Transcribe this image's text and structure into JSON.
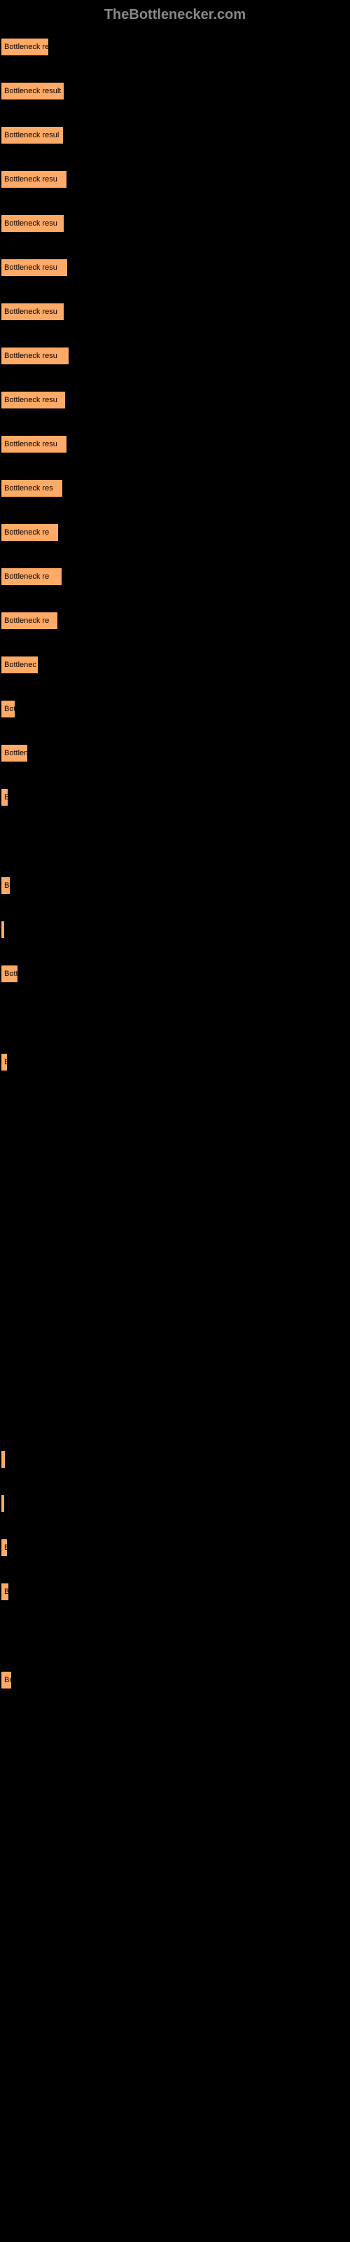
{
  "header": "TheBottlenecker.com",
  "bars": [
    {
      "label": "Bottleneck result",
      "width": 71
    },
    {
      "label": "Bottleneck result",
      "width": 93
    },
    {
      "label": "Bottleneck resul",
      "width": 92
    },
    {
      "label": "Bottleneck resu",
      "width": 97
    },
    {
      "label": "Bottleneck resu",
      "width": 93
    },
    {
      "label": "Bottleneck resu",
      "width": 98
    },
    {
      "label": "Bottleneck resu",
      "width": 93
    },
    {
      "label": "Bottleneck resu",
      "width": 100
    },
    {
      "label": "Bottleneck resu",
      "width": 95
    },
    {
      "label": "Bottleneck resu",
      "width": 97
    },
    {
      "label": "Bottleneck res",
      "width": 91
    },
    {
      "label": "Bottleneck re",
      "width": 85
    },
    {
      "label": "Bottleneck re",
      "width": 90
    },
    {
      "label": "Bottleneck re",
      "width": 84
    },
    {
      "label": "Bottlenec",
      "width": 56
    },
    {
      "label": "Bot",
      "width": 23
    },
    {
      "label": "Bottlen",
      "width": 41
    },
    {
      "label": "B",
      "width": 13
    },
    {
      "label": "",
      "width": 0
    },
    {
      "label": "Bo",
      "width": 16
    },
    {
      "label": "",
      "width": 6
    },
    {
      "label": "Bott",
      "width": 27
    },
    {
      "label": "",
      "width": 0
    },
    {
      "label": "B",
      "width": 12
    },
    {
      "label": "",
      "width": 0
    },
    {
      "label": "",
      "width": 0
    },
    {
      "label": "",
      "width": 0
    },
    {
      "label": "",
      "width": 0
    },
    {
      "label": "",
      "width": 0
    },
    {
      "label": "",
      "width": 0
    },
    {
      "label": "",
      "width": 0
    },
    {
      "label": "",
      "width": 0
    },
    {
      "label": "",
      "width": 9
    },
    {
      "label": "",
      "width": 6
    },
    {
      "label": "B",
      "width": 12
    },
    {
      "label": "B",
      "width": 14
    },
    {
      "label": "",
      "width": 0
    },
    {
      "label": "Bo",
      "width": 18
    }
  ],
  "colors": {
    "bar_fill": "#ffaa66",
    "bar_border": "#000000",
    "background": "#000000",
    "header_text": "#888888",
    "bar_text": "#000000"
  }
}
